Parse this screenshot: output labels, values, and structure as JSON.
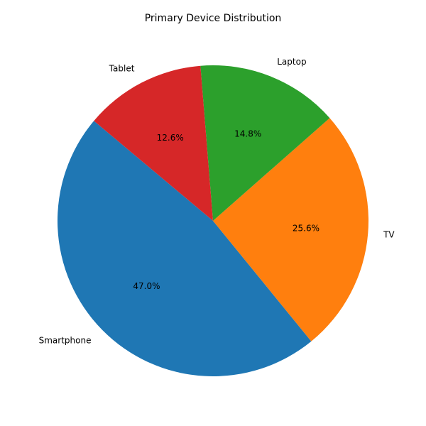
{
  "chart_data": {
    "type": "pie",
    "title": "Primary Device Distribution",
    "categories": [
      "Smartphone",
      "TV",
      "Laptop",
      "Tablet"
    ],
    "values": [
      47.0,
      25.6,
      14.8,
      12.6
    ],
    "percent_labels": [
      "47.0%",
      "25.6%",
      "14.8%",
      "12.6%"
    ],
    "colors": [
      "#1f77b4",
      "#ff7f0e",
      "#2ca02c",
      "#d62728"
    ],
    "start_angle_deg": 140,
    "direction": "counterclockwise",
    "legend": "none"
  }
}
